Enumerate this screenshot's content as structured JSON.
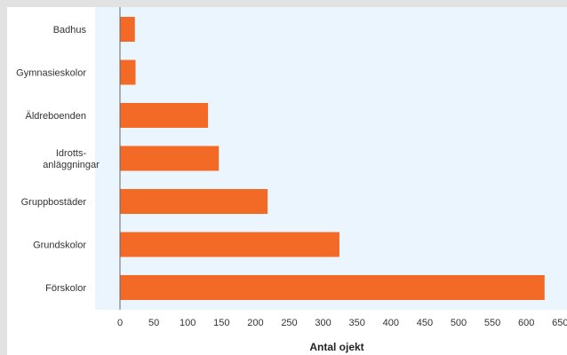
{
  "chart_data": {
    "type": "bar",
    "orientation": "horizontal",
    "categories": [
      [
        "Badhus"
      ],
      [
        "Gymnasieskolor"
      ],
      [
        "Äldreboenden"
      ],
      [
        "Idrotts-",
        "anläggningar"
      ],
      [
        "Gruppbostäder"
      ],
      [
        "Grundskolor"
      ],
      [
        "Förskolor"
      ]
    ],
    "values": [
      22,
      23,
      130,
      146,
      218,
      324,
      627
    ],
    "xlabel": "Antal ojekt",
    "xlim": [
      0,
      650
    ],
    "xticks": [
      0,
      50,
      100,
      150,
      200,
      250,
      300,
      350,
      400,
      450,
      500,
      550,
      600,
      650
    ],
    "grid": false,
    "colors": {
      "bar": "#f26a25",
      "plot_background": "#eaf5fd",
      "axis_line": "#666666"
    }
  }
}
